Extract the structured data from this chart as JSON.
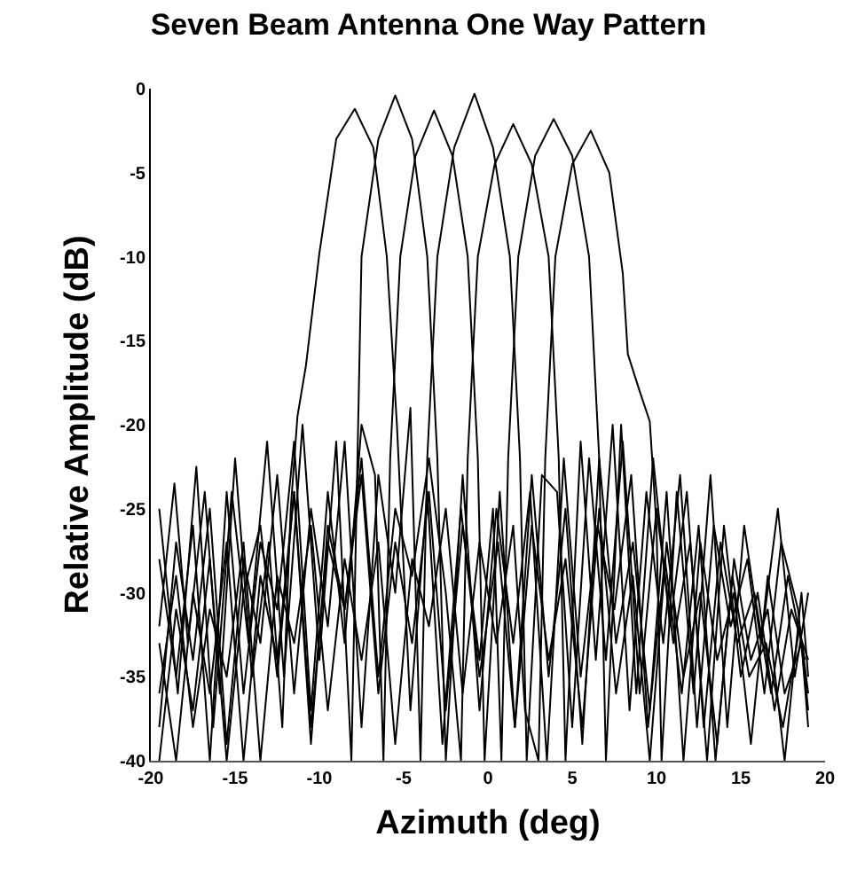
{
  "chart_data": {
    "type": "line",
    "title": "Seven Beam Antenna One Way Pattern",
    "xlabel": "Azimuth (deg)",
    "ylabel": "Relative Amplitude (dB)",
    "xlim": [
      -20,
      20
    ],
    "ylim": [
      -40,
      0
    ],
    "xticks": [
      -20,
      -15,
      -10,
      -5,
      0,
      5,
      10,
      15,
      20
    ],
    "yticks": [
      0,
      -5,
      -10,
      -15,
      -20,
      -25,
      -30,
      -35,
      -40
    ],
    "grid": false,
    "marker": "none",
    "line_style": "solid",
    "series": [
      {
        "color": "#000000",
        "x": [
          -19.5,
          -18.6,
          -17.8,
          -16.8,
          -15.9,
          -15,
          -14,
          -13,
          -12.2,
          -11.7,
          -11.3,
          -10.8,
          -10,
          -9,
          -7.9,
          -6.8,
          -6,
          -5.4,
          -4.6,
          -3.6,
          -2.7,
          -1.6,
          -0.5,
          0.6,
          1.6,
          2.6,
          3.6,
          4.6,
          5.6,
          6.6,
          7.6,
          8.6,
          9.6,
          10.6,
          11.6,
          12.6,
          13.6,
          14.6,
          15.6,
          16.6,
          17.6,
          18.6,
          19
        ],
        "values": [
          -32,
          -23.5,
          -33,
          -24,
          -36,
          -22,
          -35,
          -27,
          -38,
          -25,
          -19.5,
          -16.5,
          -9.8,
          -3,
          -1.2,
          -3.5,
          -10,
          -20,
          -37,
          -24,
          -39,
          -25,
          -35,
          -27,
          -38,
          -26,
          -34,
          -28,
          -38,
          -25,
          -36,
          -29,
          -40,
          -27,
          -35,
          -30,
          -39,
          -28,
          -34,
          -31,
          -40,
          -30,
          -35
        ]
      },
      {
        "color": "#000000",
        "x": [
          -19.5,
          -18.4,
          -17.3,
          -16.3,
          -15.2,
          -14.2,
          -13.1,
          -12.1,
          -11,
          -10,
          -9,
          -8.1,
          -7.5,
          -6.5,
          -5.5,
          -4.5,
          -3.6,
          -3,
          -2.5,
          -1.5,
          -0.5,
          0.5,
          1.5,
          2.5,
          3.5,
          4.5,
          5.5,
          6.5,
          7.5,
          8.5,
          9.5,
          10.5,
          11.5,
          12.5,
          13.5,
          14.5,
          15.5,
          16.5,
          17.5,
          18.5,
          19
        ],
        "values": [
          -25,
          -36,
          -22.5,
          -38,
          -24,
          -33,
          -21,
          -35,
          -20,
          -34,
          -21,
          -40,
          -10,
          -3,
          -0.4,
          -3,
          -10,
          -22,
          -40,
          -23,
          -37,
          -25,
          -33,
          -24,
          -40,
          -22,
          -35,
          -26,
          -31,
          -23,
          -38,
          -28,
          -36,
          -26,
          -40,
          -29,
          -35,
          -33,
          -38,
          -32,
          -36
        ]
      },
      {
        "color": "#000000",
        "x": [
          -19.5,
          -18.5,
          -17.5,
          -16.5,
          -15.5,
          -14.5,
          -13.5,
          -12.5,
          -11.5,
          -10.5,
          -9.5,
          -8.5,
          -7.5,
          -6.7,
          -6.2,
          -5.8,
          -5.2,
          -4.3,
          -3.2,
          -2.1,
          -1.2,
          -0.6,
          -0.2,
          0.7,
          1.6,
          2.6,
          3.6,
          4.6,
          5.6,
          6.6,
          7.6,
          8.6,
          9.6,
          10.6,
          11.6,
          12.6,
          13.6,
          14.6,
          15.6,
          16.6,
          17.6,
          18.6,
          19
        ],
        "values": [
          -28,
          -35,
          -26,
          -40,
          -24,
          -36,
          -27,
          -31,
          -21,
          -37,
          -24,
          -33,
          -20,
          -23,
          -40,
          -22,
          -10,
          -4,
          -1.3,
          -4,
          -10,
          -22,
          -40,
          -24,
          -38,
          -23,
          -35,
          -25,
          -39,
          -22,
          -33,
          -27,
          -37,
          -24,
          -40,
          -27,
          -34,
          -30,
          -39,
          -29,
          -36,
          -33,
          -38
        ]
      },
      {
        "color": "#000000",
        "x": [
          -19.5,
          -18.5,
          -17.5,
          -16.5,
          -15.5,
          -14.5,
          -13.5,
          -12.5,
          -11.5,
          -10.5,
          -9.5,
          -8.5,
          -7.5,
          -6.5,
          -5.5,
          -4.6,
          -4,
          -3.6,
          -3,
          -2,
          -0.8,
          0.3,
          1.3,
          1.9,
          2.3,
          3.2,
          4.1,
          5,
          6,
          7,
          8,
          9,
          10,
          11,
          12,
          13,
          14,
          15,
          16,
          17,
          18,
          19
        ],
        "values": [
          -38,
          -27,
          -34,
          -25,
          -39,
          -28,
          -33,
          -23,
          -36,
          -25,
          -32,
          -21,
          -38,
          -23,
          -30,
          -19,
          -40,
          -22,
          -10,
          -3.5,
          -0.3,
          -3.5,
          -10,
          -22,
          -40,
          -23,
          -24,
          -38,
          -22,
          -34,
          -21,
          -36,
          -25,
          -33,
          -27,
          -40,
          -26,
          -35,
          -30,
          -37,
          -31,
          -34
        ]
      },
      {
        "color": "#000000",
        "x": [
          -19.5,
          -18.5,
          -17.5,
          -16.5,
          -15.5,
          -14.5,
          -13.5,
          -12.5,
          -11.5,
          -10.5,
          -9.5,
          -8.5,
          -7.5,
          -6.5,
          -5.5,
          -4.5,
          -3.5,
          -2.5,
          -1.6,
          -1.2,
          -0.6,
          0.4,
          1.5,
          2.6,
          3.6,
          4.2,
          4.6,
          5.5,
          6.4,
          7.4,
          8.4,
          9.4,
          10.4,
          11.4,
          12.4,
          13.4,
          14.4,
          15.4,
          16.4,
          17.4,
          18.4,
          19
        ],
        "values": [
          -33,
          -40,
          -30,
          -36,
          -27,
          -40,
          -29,
          -34,
          -24,
          -38,
          -27,
          -31,
          -22,
          -35,
          -25,
          -29,
          -22,
          -30,
          -40,
          -22,
          -10,
          -4.5,
          -2.1,
          -4.5,
          -10,
          -22,
          -40,
          -21,
          -34,
          -20,
          -37,
          -24,
          -33,
          -23,
          -38,
          -26,
          -32,
          -28,
          -36,
          -27,
          -31,
          -37
        ]
      },
      {
        "color": "#000000",
        "x": [
          -19.5,
          -18.5,
          -17.5,
          -16.5,
          -15.5,
          -14.5,
          -13.5,
          -12.5,
          -11.5,
          -10.5,
          -9.5,
          -8.5,
          -7.5,
          -6.5,
          -5.5,
          -4.5,
          -3.5,
          -2.5,
          -1.5,
          -0.5,
          0.3,
          0.8,
          1.2,
          1.8,
          2.8,
          3.9,
          5,
          6,
          6.6,
          7,
          7.9,
          8.8,
          9.8,
          10.8,
          11.8,
          12.8,
          13.8,
          14.8,
          15.8,
          16.8,
          17.8,
          18.8
        ],
        "values": [
          -40,
          -31,
          -37,
          -28,
          -40,
          -30,
          -26,
          -35,
          -24,
          -39,
          -26,
          -31,
          -23,
          -36,
          -27,
          -33,
          -24,
          -37,
          -26,
          -34,
          -25,
          -40,
          -22,
          -10,
          -4,
          -1.8,
          -4,
          -10,
          -22,
          -40,
          -20,
          -36,
          -22,
          -32,
          -24,
          -38,
          -27,
          -33,
          -30,
          -36,
          -29,
          -34
        ]
      },
      {
        "color": "#000000",
        "x": [
          -19.5,
          -18.5,
          -17.5,
          -16.5,
          -15.5,
          -14.5,
          -13.5,
          -12.5,
          -11.5,
          -10.5,
          -9.5,
          -8.5,
          -7.5,
          -6.5,
          -5.5,
          -4.5,
          -3.5,
          -2.5,
          -1.5,
          -0.5,
          0.5,
          1.5,
          2.2,
          3,
          3.4,
          4,
          5,
          6.1,
          7.2,
          8,
          8.3,
          9,
          9.6,
          10,
          10.3,
          11.2,
          12.2,
          13.2,
          14.2,
          15.2,
          16.2,
          17.2,
          18.2,
          19
        ],
        "values": [
          -36,
          -29,
          -38,
          -31,
          -35,
          -27,
          -40,
          -29,
          -33,
          -26,
          -37,
          -28,
          -34,
          -27,
          -39,
          -28,
          -32,
          -25,
          -36,
          -27,
          -33,
          -26,
          -37,
          -40,
          -22,
          -10,
          -4.5,
          -2.5,
          -5,
          -11,
          -15.8,
          -18,
          -19.8,
          -26,
          -40,
          -24,
          -36,
          -23,
          -38,
          -26,
          -33,
          -25,
          -35,
          -30
        ]
      }
    ]
  }
}
